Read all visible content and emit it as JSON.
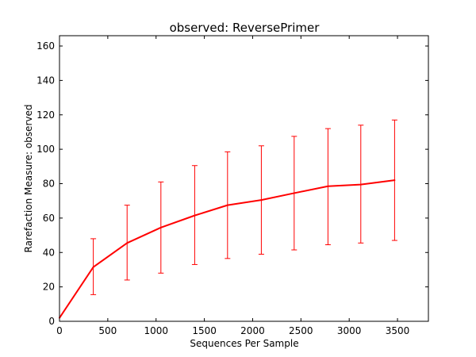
{
  "chart_data": {
    "type": "line",
    "title": "observed: ReversePrimer",
    "xlabel": "Sequences Per Sample",
    "ylabel": "Rarefaction Measure: observed",
    "xlim": [
      0,
      3820
    ],
    "ylim": [
      0,
      166
    ],
    "xticks": [
      0,
      500,
      1000,
      1500,
      2000,
      2500,
      3000,
      3500
    ],
    "yticks": [
      0,
      20,
      40,
      60,
      80,
      100,
      120,
      140,
      160
    ],
    "grid": false,
    "legend": "none",
    "series": [
      {
        "color": "#ff0000",
        "x": [
          0,
          350,
          700,
          1050,
          1400,
          1740,
          2090,
          2430,
          2780,
          3120,
          3470
        ],
        "y": [
          2,
          31.5,
          45.5,
          54.5,
          61.5,
          67.5,
          70.5,
          74.5,
          78.5,
          79.5,
          82
        ],
        "err_low": [
          null,
          15.5,
          24,
          28,
          33,
          36.5,
          39,
          41.5,
          44.5,
          45.5,
          47
        ],
        "err_high": [
          null,
          48,
          67.5,
          81,
          90.5,
          98.5,
          102,
          107.5,
          112,
          114,
          117
        ]
      }
    ]
  }
}
